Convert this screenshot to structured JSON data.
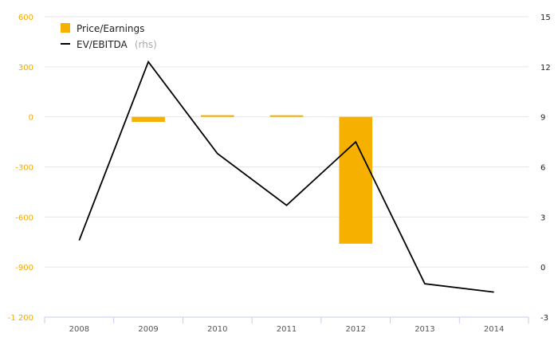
{
  "chart_data": {
    "type": "bar",
    "categories": [
      "2008",
      "2009",
      "2010",
      "2011",
      "2012",
      "2013",
      "2014"
    ],
    "series": [
      {
        "name": "Price/Earnings",
        "kind": "bar",
        "axis": "left",
        "color": "#f5b000",
        "values": [
          null,
          -30,
          10,
          5,
          -760,
          null,
          null
        ]
      },
      {
        "name": "EV/EBITDA",
        "legend_suffix": "(rhs)",
        "kind": "line",
        "axis": "right",
        "color": "#000000",
        "values": [
          1.6,
          12.3,
          6.8,
          3.7,
          7.5,
          -1.0,
          -1.5
        ]
      }
    ],
    "left_axis": {
      "ylim": [
        -1200,
        600
      ],
      "ticks": [
        600,
        300,
        0,
        -300,
        -600,
        -900,
        -1200
      ],
      "tick_labels": [
        "600",
        "300",
        "0",
        "-300",
        "-600",
        "-900",
        "-1 200"
      ],
      "color": "#f5a800"
    },
    "right_axis": {
      "ylim": [
        -3,
        15
      ],
      "ticks": [
        15,
        12,
        9,
        6,
        3,
        0,
        -3
      ],
      "tick_labels": [
        "15",
        "12",
        "9",
        "6",
        "3",
        "0",
        "-3"
      ],
      "color": "#222222"
    },
    "grid": true,
    "legend_position": "top-left"
  }
}
